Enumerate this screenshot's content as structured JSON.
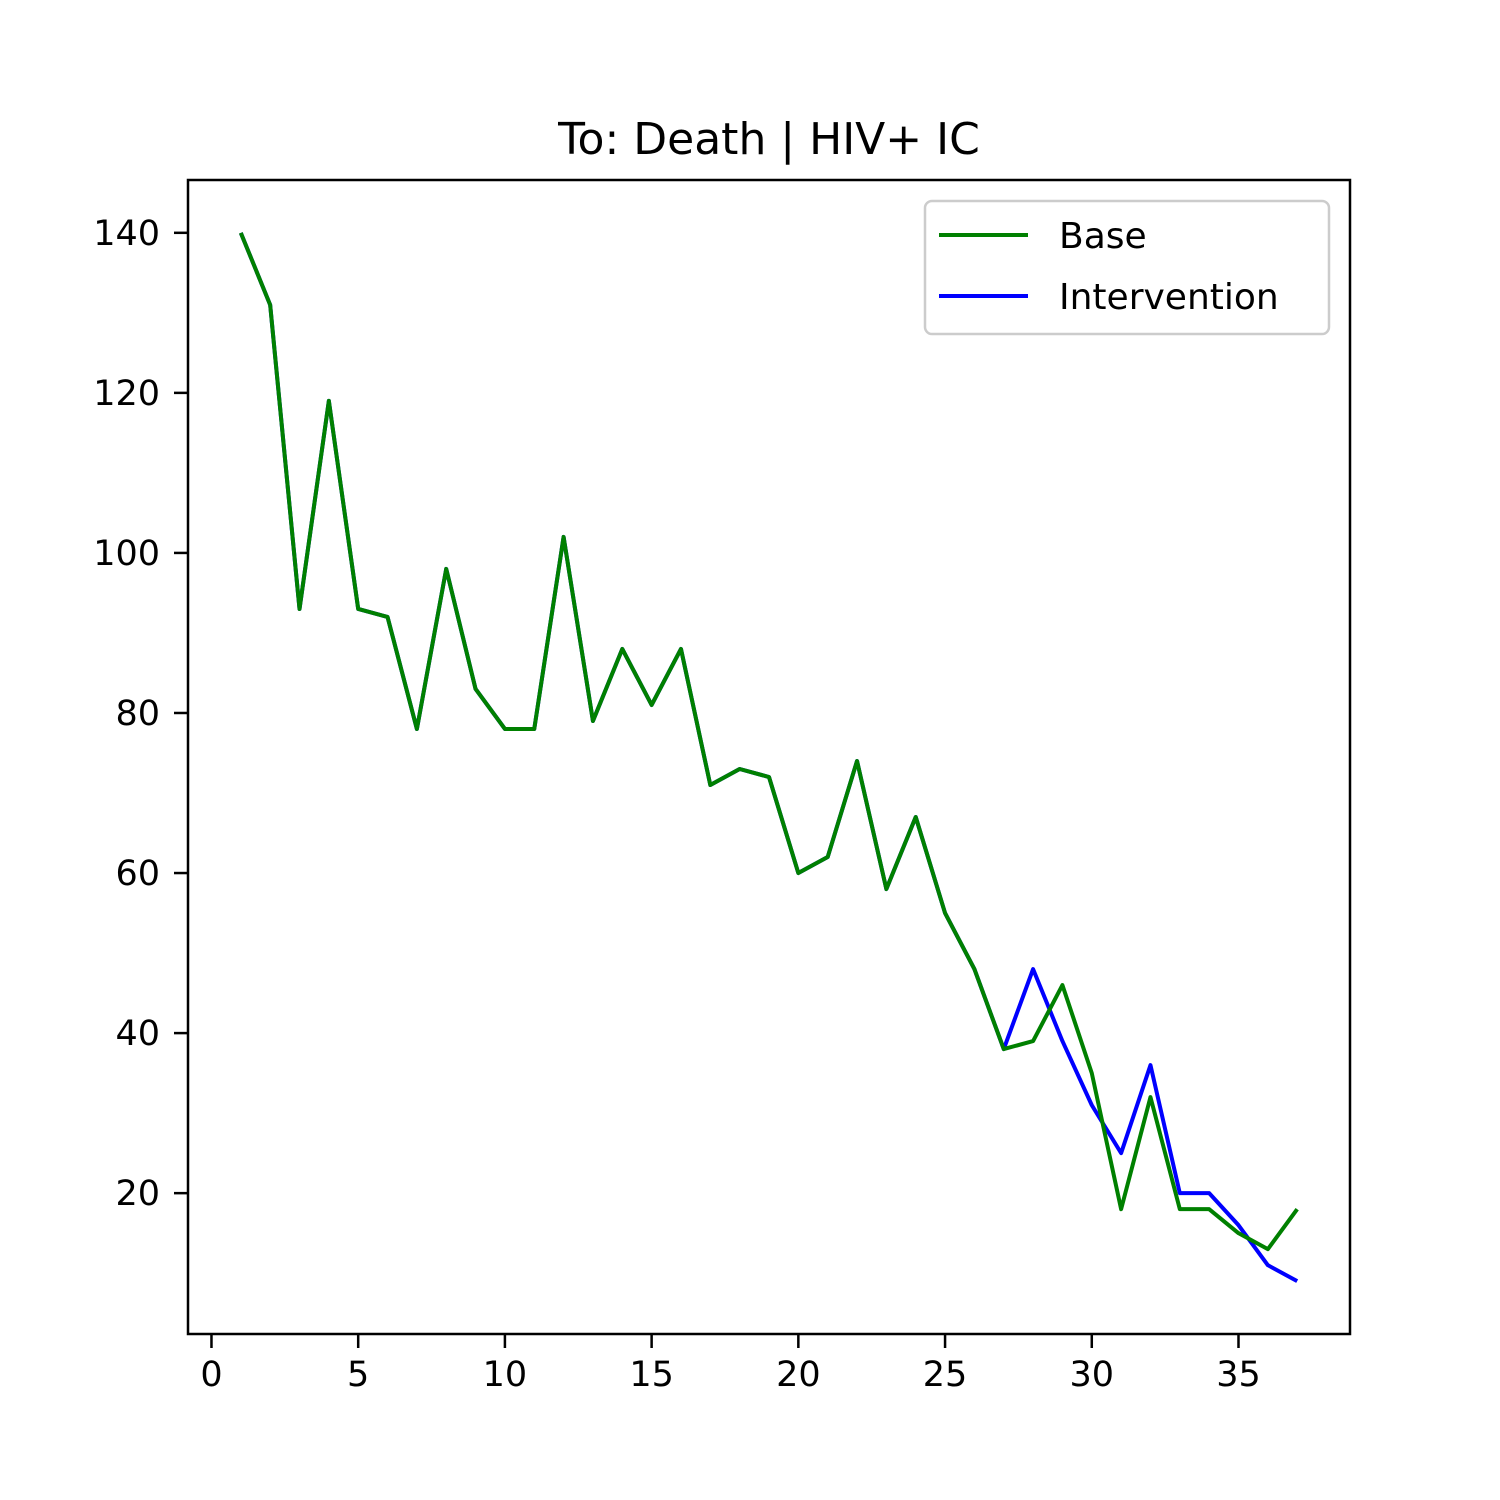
{
  "chart_data": {
    "type": "line",
    "title": "To: Death | HIV+ IC",
    "xlabel": "",
    "ylabel": "",
    "xlim": [
      -0.8,
      38.8
    ],
    "ylim": [
      2.4,
      146.6
    ],
    "xticks": [
      0,
      5,
      10,
      15,
      20,
      25,
      30,
      35
    ],
    "yticks": [
      20,
      40,
      60,
      80,
      100,
      120,
      140
    ],
    "grid": false,
    "legend_position": "top-right",
    "series": [
      {
        "name": "Intervention",
        "color": "#0000ff",
        "x": [
          1,
          2,
          3,
          4,
          5,
          6,
          7,
          8,
          9,
          10,
          11,
          12,
          13,
          14,
          15,
          16,
          17,
          18,
          19,
          20,
          21,
          22,
          23,
          24,
          25,
          26,
          27,
          28,
          29,
          30,
          31,
          32,
          33,
          34,
          35,
          36,
          37
        ],
        "values": [
          140,
          131,
          93,
          119,
          93,
          92,
          78,
          98,
          83,
          78,
          78,
          102,
          79,
          88,
          81,
          88,
          71,
          73,
          72,
          60,
          62,
          74,
          58,
          67,
          55,
          48,
          38,
          48,
          39,
          31,
          25,
          36,
          20,
          20,
          16,
          11,
          9
        ]
      },
      {
        "name": "Base",
        "color": "#008000",
        "x": [
          1,
          2,
          3,
          4,
          5,
          6,
          7,
          8,
          9,
          10,
          11,
          12,
          13,
          14,
          15,
          16,
          17,
          18,
          19,
          20,
          21,
          22,
          23,
          24,
          25,
          26,
          27,
          28,
          29,
          30,
          31,
          32,
          33,
          34,
          35,
          36,
          37
        ],
        "values": [
          140,
          131,
          93,
          119,
          93,
          92,
          78,
          98,
          83,
          78,
          78,
          102,
          79,
          88,
          81,
          88,
          71,
          73,
          72,
          60,
          62,
          74,
          58,
          67,
          55,
          48,
          38,
          39,
          46,
          35,
          18,
          32,
          18,
          18,
          15,
          13,
          18
        ]
      }
    ],
    "legend": [
      {
        "label": "Base",
        "color": "#008000"
      },
      {
        "label": "Intervention",
        "color": "#0000ff"
      }
    ]
  }
}
